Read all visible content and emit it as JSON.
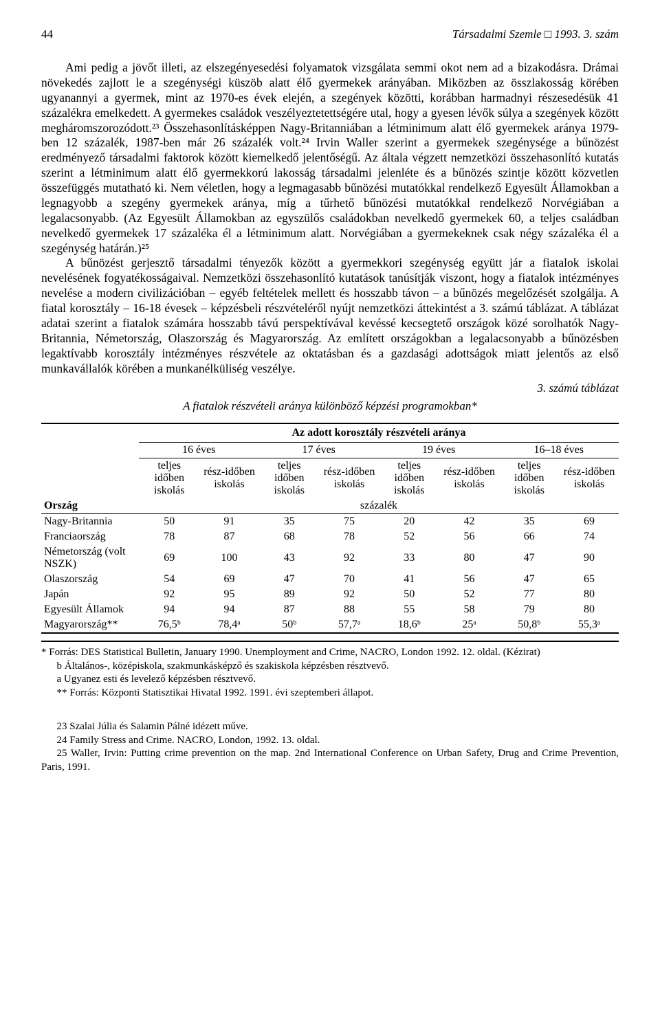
{
  "header": {
    "page_number": "44",
    "journal": "Társadalmi Szemle □ 1993. 3. szám"
  },
  "paragraph1": "Ami pedig a jövőt illeti, az elszegényesedési folyamatok vizsgálata semmi okot nem ad a bizakodásra. Drámai növekedés zajlott le a szegénységi küszöb alatt élő gyermekek arányában. Miközben az összlakosság körében ugyanannyi a gyermek, mint az 1970-es évek elején, a szegények közötti, korábban harmadnyi részesedésük 41 százalékra emelkedett. A gyermekes családok veszélyeztetettségére utal, hogy a gyesen lévők súlya a szegények között megháromszorozódott.²³ Összehasonlításképpen Nagy-Britanniában a létminimum alatt élő gyermekek aránya 1979-ben 12 százalék, 1987-ben már 26 százalék volt.²⁴ Irvin Waller szerint a gyermekek szegénysége a bűnözést eredményező társadalmi faktorok között kiemelkedő jelentőségű. Az általa végzett nemzetközi összehasonlító kutatás szerint a létminimum alatt élő gyermekkorú lakosság társadalmi jelenléte és a bűnözés szintje között közvetlen összefüggés mutatható ki. Nem véletlen, hogy a legmagasabb bűnözési mutatókkal rendelkező Egyesült Államokban a legnagyobb a szegény gyermekek aránya, míg a tűrhető bűnözési mutatókkal rendelkező Norvégiában a legalacsonyabb. (Az Egyesült Államokban az egyszülős családokban nevelkedő gyermekek 60, a teljes családban nevelkedő gyermekek 17 százaléka él a létminimum alatt. Norvégiában a gyermekeknek csak négy százaléka él a szegénység határán.)²⁵",
  "paragraph2": "A bűnözést gerjesztő társadalmi tényezők között a gyermekkori szegénység együtt jár a fiatalok iskolai nevelésének fogyatékosságaival. Nemzetközi összehasonlító kutatások tanúsítják viszont, hogy a fiatalok intézményes nevelése a modern civilizációban – egyéb feltételek mellett és hosszabb távon – a bűnözés megelőzését szolgálja. A fiatal korosztály – 16-18 évesek – képzésbeli részvételéről nyújt nemzetközi áttekintést a 3. számú táblázat. A táblázat adatai szerint a fiatalok számára hosszabb távú perspektívával kevéssé kecsegtető országok közé sorolhatók Nagy-Britannia, Németország, Olaszország és Magyarország. Az említett országokban a legalacsonyabb a bűnözésben legaktívabb korosztály intézményes részvétele az oktatásban és a gazdasági adottságok miatt jelentős az első munkavállalók körében a munkanélküliség veszélye.",
  "table": {
    "caption_right": "3. számú táblázat",
    "title": "A fiatalok részvételi aránya különböző képzési programokban*",
    "super_header": "Az adott korosztály részvételi aránya",
    "age_groups": [
      "16 éves",
      "17 éves",
      "19 éves",
      "16–18 éves"
    ],
    "sub_cols": [
      "teljes időben iskolás",
      "rész-időben iskolás"
    ],
    "unit_row": "százalék",
    "row_label_header": "Ország",
    "rows": [
      {
        "label": "Nagy-Britannia",
        "vals": [
          "50",
          "91",
          "35",
          "75",
          "20",
          "42",
          "35",
          "69"
        ]
      },
      {
        "label": "Franciaország",
        "vals": [
          "78",
          "87",
          "68",
          "78",
          "52",
          "56",
          "66",
          "74"
        ]
      },
      {
        "label": "Németország (volt NSZK)",
        "vals": [
          "69",
          "100",
          "43",
          "92",
          "33",
          "80",
          "47",
          "90"
        ]
      },
      {
        "label": "Olaszország",
        "vals": [
          "54",
          "69",
          "47",
          "70",
          "41",
          "56",
          "47",
          "65"
        ]
      },
      {
        "label": "Japán",
        "vals": [
          "92",
          "95",
          "89",
          "92",
          "50",
          "52",
          "77",
          "80"
        ]
      },
      {
        "label": "Egyesült Államok",
        "vals": [
          "94",
          "94",
          "87",
          "88",
          "55",
          "58",
          "79",
          "80"
        ]
      },
      {
        "label": "Magyarország**",
        "vals": [
          "76,5ᵇ",
          "78,4ᵃ",
          "50ᵇ",
          "57,7ᵃ",
          "18,6ᵇ",
          "25ᵃ",
          "50,8ᵇ",
          "55,3ᵃ"
        ]
      }
    ],
    "styling": {
      "font_size_pt": 16,
      "rule_color": "#000000",
      "background": "#ffffff",
      "col_count": 9,
      "label_col_align": "left",
      "value_col_align": "center"
    }
  },
  "footnotes_block1": [
    "* Forrás: DES Statistical Bulletin, January 1990. Unemployment and Crime, NACRO, London 1992. 12. oldal. (Kézirat)",
    "b Általános-, középiskola, szakmunkásképző és szakiskola képzésben résztvevő.",
    "a Ugyanez esti és levelező képzésben résztvevő.",
    "** Forrás: Központi Statisztikai Hivatal 1992. 1991. évi szeptemberi állapot."
  ],
  "footnotes_block2": [
    "23 Szalai Júlia és Salamin Pálné idézett műve.",
    "24 Family Stress and Crime. NACRO, London, 1992. 13. oldal.",
    "25 Waller, Irvin: Putting crime prevention on the map. 2nd International Conference on Urban Safety, Drug and Crime Prevention, Paris, 1991."
  ]
}
